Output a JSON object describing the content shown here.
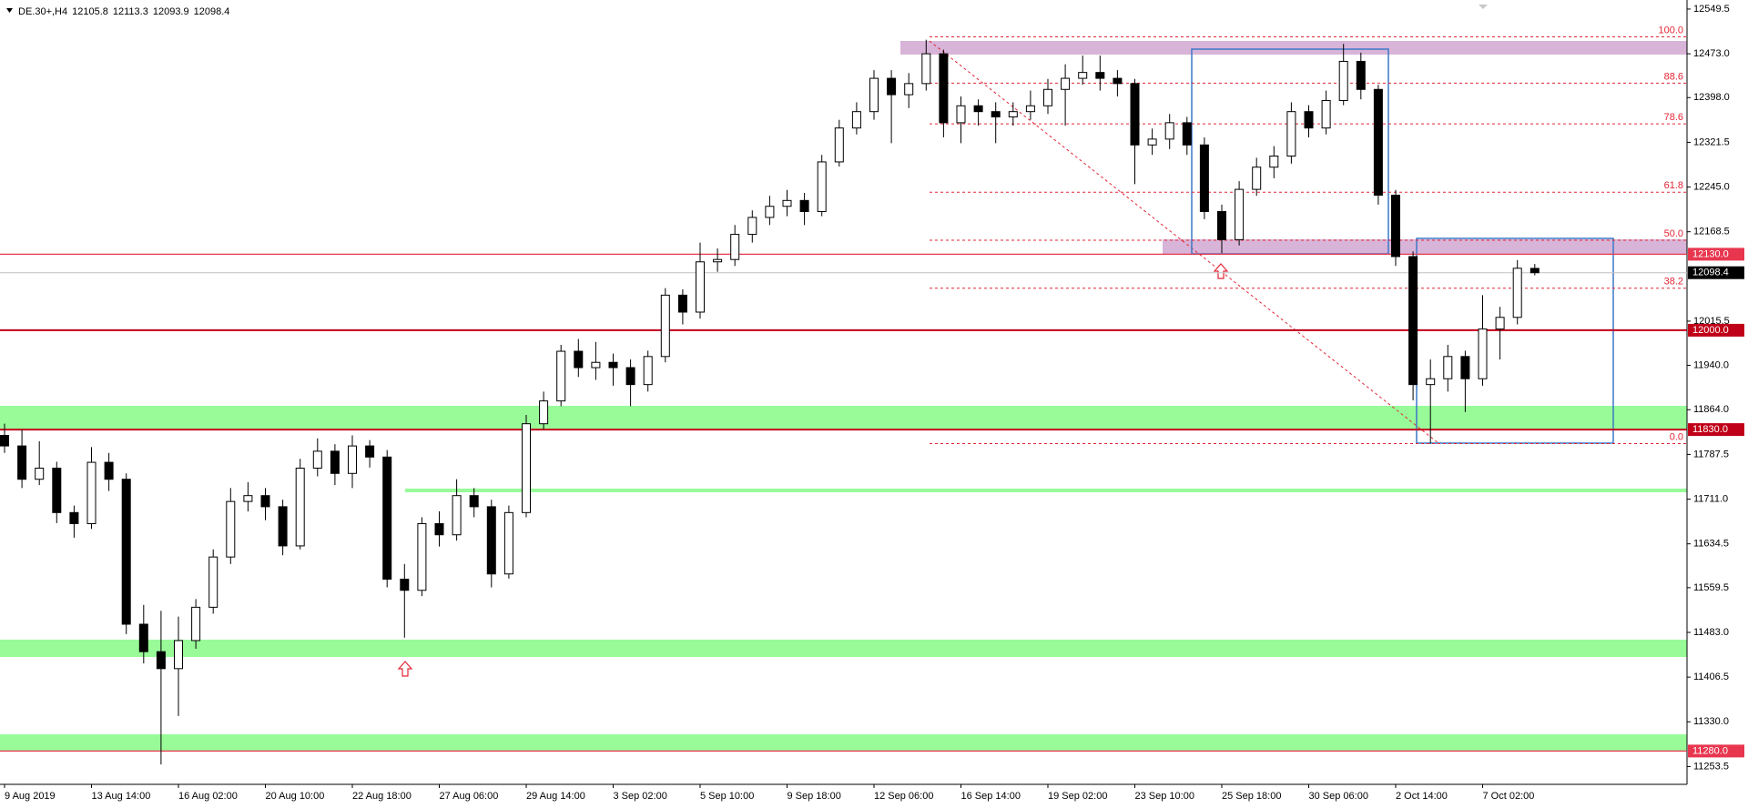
{
  "chart_data": {
    "type": "candlestick",
    "title": "DE.30+,H4",
    "categories": [
      "9 Aug 2019",
      null,
      null,
      null,
      null,
      "13 Aug 14:00",
      null,
      null,
      null,
      null,
      "16 Aug 02:00",
      null,
      null,
      null,
      null,
      "20 Aug 10:00",
      null,
      null,
      null,
      null,
      "22 Aug 18:00",
      null,
      null,
      null,
      null,
      "27 Aug 06:00",
      null,
      null,
      null,
      null,
      "29 Aug 14:00",
      null,
      null,
      null,
      null,
      "3 Sep 02:00",
      null,
      null,
      null,
      null,
      "5 Sep 10:00",
      null,
      null,
      null,
      null,
      "9 Sep 18:00",
      null,
      null,
      null,
      null,
      "12 Sep 06:00",
      null,
      null,
      null,
      null,
      "16 Sep 14:00",
      null,
      null,
      null,
      null,
      "19 Sep 02:00",
      null,
      null,
      null,
      null,
      "23 Sep 10:00",
      null,
      null,
      null,
      null,
      "25 Sep 18:00",
      null,
      null,
      null,
      null,
      "30 Sep 06:00",
      null,
      null,
      null,
      null,
      "2 Oct 14:00",
      null,
      null,
      null,
      null,
      "7 Oct 02:00",
      null,
      null,
      null
    ],
    "open": [
      11820,
      11802,
      11745,
      11764,
      11688,
      11669,
      11774,
      11745,
      11497,
      11450,
      11421,
      11469,
      11526,
      11612,
      11707,
      11717,
      11698,
      11631,
      11764,
      11793,
      11755,
      11802,
      11783,
      11574,
      11555,
      11669,
      11650,
      11717,
      11698,
      11583,
      11688,
      11840,
      11879,
      11964,
      11936,
      11945,
      11936,
      11907,
      11955,
      12060,
      12031,
      12117,
      12121,
      12164,
      12193,
      12212,
      12222,
      12203,
      12288,
      12346,
      12374,
      12431,
      12403,
      12422,
      12473,
      12355,
      12384,
      12374,
      12365,
      12374,
      12384,
      12412,
      12431,
      12441,
      12431,
      12422,
      12317,
      12327,
      12355,
      12317,
      12203,
      12155,
      12241,
      12279,
      12298,
      12374,
      12346,
      12393,
      12460,
      12412,
      12231,
      12126,
      11907,
      11917,
      11955,
      11917,
      12002,
      12022,
      12105.8
    ],
    "high": [
      11840,
      11830,
      11810,
      11775,
      11700,
      11800,
      11790,
      11755,
      11530,
      11520,
      11510,
      11540,
      11625,
      11730,
      11740,
      11730,
      11710,
      11780,
      11815,
      11805,
      11820,
      11812,
      11795,
      11600,
      11680,
      11690,
      11745,
      11730,
      11710,
      11700,
      11855,
      11895,
      11975,
      11985,
      11980,
      11960,
      11950,
      11965,
      12072,
      12070,
      12150,
      12140,
      12180,
      12205,
      12230,
      12240,
      12235,
      12300,
      12360,
      12390,
      12445,
      12445,
      12440,
      12497,
      12480,
      12400,
      12395,
      12390,
      12390,
      12410,
      12430,
      12455,
      12470,
      12470,
      12445,
      12430,
      12345,
      12370,
      12365,
      12330,
      12215,
      12255,
      12295,
      12315,
      12390,
      12385,
      12410,
      12490,
      12475,
      12420,
      12240,
      12135,
      11950,
      11975,
      11965,
      12060,
      12040,
      12120,
      12113.3
    ],
    "low": [
      11790,
      11730,
      11735,
      11670,
      11645,
      11660,
      11725,
      11480,
      11430,
      11257,
      11340,
      11455,
      11515,
      11600,
      11690,
      11675,
      11615,
      11625,
      11750,
      11735,
      11730,
      11765,
      11560,
      11474,
      11545,
      11630,
      11640,
      11680,
      11560,
      11575,
      11680,
      11830,
      11870,
      11920,
      11915,
      11905,
      11870,
      11895,
      11945,
      12010,
      12020,
      12100,
      12110,
      12150,
      12180,
      12195,
      12180,
      12195,
      12280,
      12335,
      12360,
      12320,
      12380,
      12410,
      12330,
      12320,
      12350,
      12320,
      12350,
      12360,
      12370,
      12350,
      12420,
      12410,
      12400,
      12250,
      12300,
      12310,
      12300,
      12190,
      12132,
      12145,
      12230,
      12260,
      12285,
      12330,
      12335,
      12385,
      12395,
      12215,
      12110,
      11880,
      11806,
      11895,
      11860,
      11905,
      11950,
      12010,
      12093.9
    ],
    "close": [
      11802,
      11745,
      11764,
      11688,
      11669,
      11774,
      11745,
      11497,
      11450,
      11421,
      11469,
      11526,
      11612,
      11707,
      11717,
      11698,
      11631,
      11764,
      11793,
      11755,
      11802,
      11783,
      11574,
      11555,
      11669,
      11650,
      11717,
      11698,
      11583,
      11688,
      11840,
      11879,
      11964,
      11936,
      11945,
      11936,
      11907,
      11955,
      12060,
      12031,
      12117,
      12121,
      12164,
      12193,
      12212,
      12222,
      12203,
      12288,
      12346,
      12374,
      12431,
      12403,
      12422,
      12473,
      12355,
      12384,
      12374,
      12365,
      12374,
      12384,
      12412,
      12431,
      12441,
      12431,
      12422,
      12317,
      12327,
      12355,
      12317,
      12203,
      12155,
      12241,
      12279,
      12298,
      12374,
      12346,
      12393,
      12460,
      12412,
      12231,
      12126,
      11907,
      11917,
      11955,
      11917,
      12002,
      12022,
      12106,
      12098.4
    ],
    "up_color": "#ffffff",
    "down_color": "#000000",
    "ylim": [
      11223,
      12565
    ],
    "yticks": [
      12549.5,
      {
        "value": 12473,
        "label": "12473.0"
      },
      {
        "value": 12398,
        "label": "12398.0"
      },
      12321.5,
      {
        "value": 12245,
        "label": "12245.0"
      },
      12168.5,
      12015.5,
      {
        "value": 11940,
        "label": "11940.0"
      },
      {
        "value": 11864,
        "label": "11864.0"
      },
      11787.5,
      {
        "value": 11711,
        "label": "11711.0"
      },
      11634.5,
      11559.5,
      {
        "value": 11483,
        "label": "11483.0"
      },
      11406.5,
      {
        "value": 11330,
        "label": "11330.0"
      },
      11253.5
    ],
    "hlines": [
      {
        "value": 12130,
        "label": "12130.0",
        "color": "#e8364f"
      },
      {
        "value": 12000,
        "label": "12000.0",
        "color": "#c00018"
      },
      {
        "value": 11830,
        "label": "11830.0",
        "color": "#c00018"
      },
      {
        "value": 11280,
        "label": "11280.0",
        "color": "#e8364f"
      }
    ],
    "fib": {
      "high": 12502,
      "low": 11806,
      "color": "#e32636",
      "levels": [
        {
          "value": 100,
          "label": "100.0"
        },
        88.6,
        78.6,
        61.8,
        {
          "value": 50,
          "label": "50.0"
        },
        38.2,
        {
          "value": 0,
          "label": "0.0"
        }
      ]
    }
  }
}
